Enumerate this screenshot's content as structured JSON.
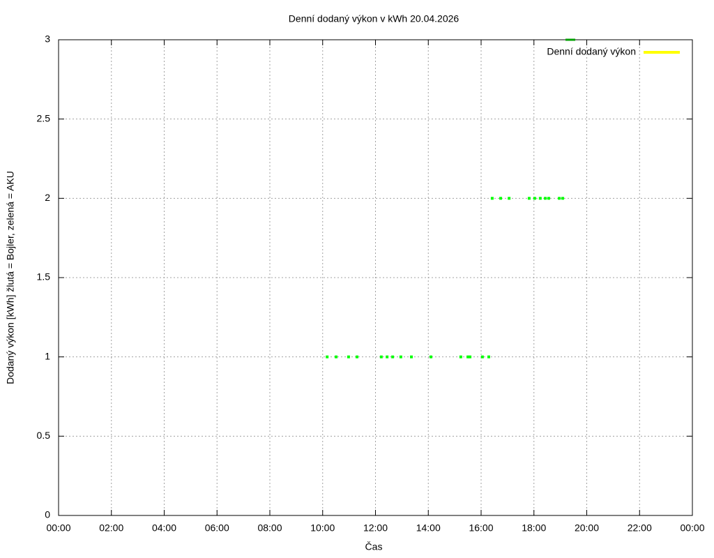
{
  "chart_data": {
    "type": "scatter",
    "title": "Denní dodaný výkon v kWh 20.04.2026",
    "x_label": "Čas",
    "y_label": "Dodaný výkon [kWh]  žlutá = Bojler, zelená = AKU",
    "xlim": [
      0,
      24
    ],
    "xticks": [
      {
        "value": 0,
        "label": "00:00"
      },
      {
        "value": 2,
        "label": "02:00"
      },
      {
        "value": 4,
        "label": "04:00"
      },
      {
        "value": 6,
        "label": "06:00"
      },
      {
        "value": 8,
        "label": "08:00"
      },
      {
        "value": 10,
        "label": "10:00"
      },
      {
        "value": 12,
        "label": "12:00"
      },
      {
        "value": 14,
        "label": "14:00"
      },
      {
        "value": 16,
        "label": "16:00"
      },
      {
        "value": 18,
        "label": "18:00"
      },
      {
        "value": 20,
        "label": "20:00"
      },
      {
        "value": 22,
        "label": "22:00"
      },
      {
        "value": 24,
        "label": "00:00"
      }
    ],
    "ylim": [
      0,
      3
    ],
    "yticks": [
      0,
      0.5,
      1,
      1.5,
      2,
      2.5,
      3
    ],
    "grid": true,
    "legend": "top-right",
    "series": [
      {
        "name": "Denní dodaný výkon",
        "color": "#ffff00",
        "x": [],
        "values": []
      },
      {
        "color": "#00ff00",
        "x": [
          10.17,
          10.51,
          10.98,
          11.3,
          12.22,
          12.44,
          12.65,
          12.96,
          13.36,
          14.1,
          15.23,
          15.5,
          15.58,
          16.05,
          16.29,
          16.42,
          16.74,
          17.06,
          17.82,
          18.03,
          18.24,
          18.43,
          18.56,
          18.96,
          19.09
        ],
        "values": [
          1,
          1,
          1,
          1,
          1,
          1,
          1,
          1,
          1,
          1,
          1,
          1,
          1,
          1,
          1,
          2,
          2,
          2,
          2,
          2,
          2,
          2,
          2,
          2,
          2
        ]
      },
      {
        "color": "#00a000",
        "x": [
          19.38
        ],
        "values": [
          3
        ]
      }
    ]
  }
}
